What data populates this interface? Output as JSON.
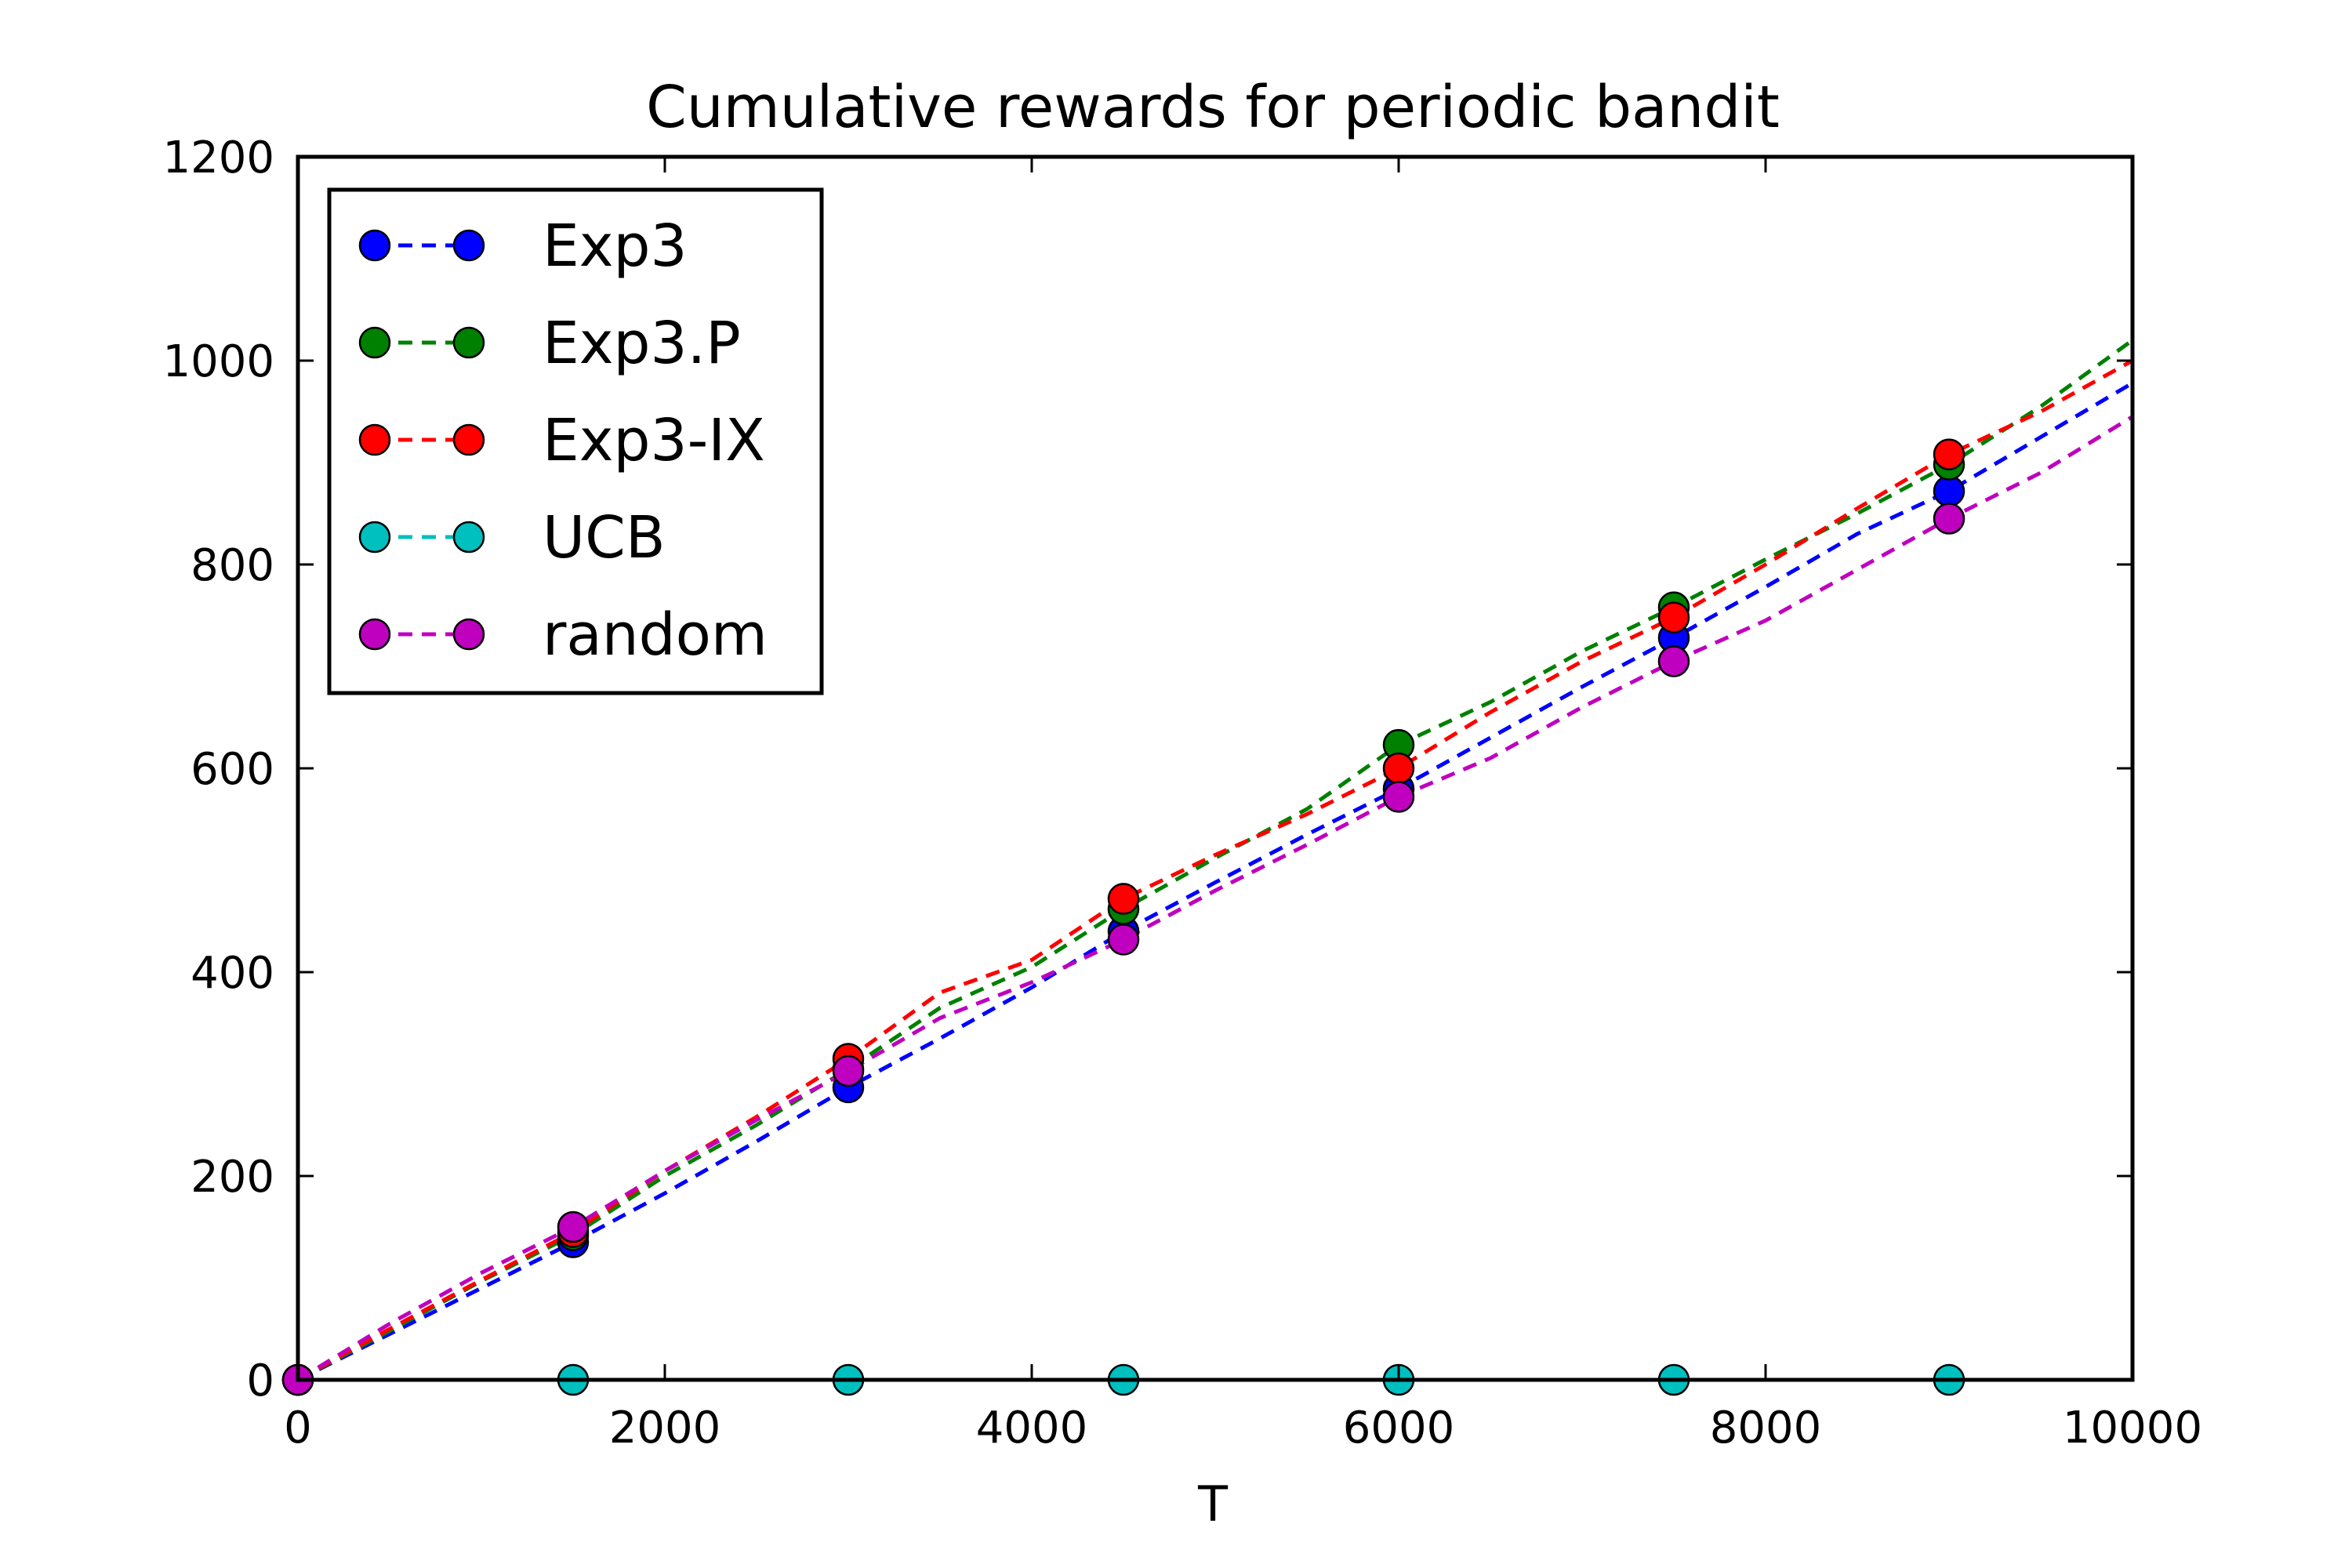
{
  "chart_data": {
    "type": "line",
    "title": "Cumulative rewards for periodic bandit",
    "xlabel": "T",
    "ylabel": "",
    "xlim": [
      0,
      10000
    ],
    "ylim": [
      0,
      1200
    ],
    "xticks": [
      0,
      2000,
      4000,
      6000,
      8000,
      10000
    ],
    "xtick_labels": [
      "0",
      "2000",
      "4000",
      "6000",
      "8000",
      "10000"
    ],
    "yticks": [
      0,
      200,
      400,
      600,
      800,
      1000,
      1200
    ],
    "ytick_labels": [
      "0",
      "200",
      "400",
      "600",
      "800",
      "1000",
      "1200"
    ],
    "grid": false,
    "legend_position": "upper-left",
    "marker_x": [
      0,
      1500,
      3000,
      4500,
      6000,
      7500,
      9000
    ],
    "series": [
      {
        "name": "Exp3",
        "color": "#0000ff",
        "x": [
          0,
          500,
          1000,
          1500,
          2000,
          2500,
          3000,
          3500,
          4000,
          4500,
          5000,
          5500,
          6000,
          6500,
          7000,
          7500,
          8000,
          8500,
          9000,
          9500,
          10000
        ],
        "y": [
          0,
          45,
          90,
          135,
          183,
          234,
          287,
          335,
          385,
          440,
          488,
          535,
          580,
          630,
          680,
          728,
          778,
          830,
          872,
          925,
          978
        ],
        "marker_y": [
          0,
          135,
          287,
          440,
          580,
          728,
          872
        ]
      },
      {
        "name": "Exp3.P",
        "color": "#008000",
        "x": [
          0,
          500,
          1000,
          1500,
          2000,
          2500,
          3000,
          3500,
          4000,
          4500,
          5000,
          5500,
          6000,
          6500,
          7000,
          7500,
          8000,
          8500,
          9000,
          9500,
          10000
        ],
        "y": [
          0,
          48,
          97,
          142,
          200,
          250,
          305,
          365,
          405,
          462,
          512,
          560,
          623,
          665,
          715,
          758,
          805,
          850,
          898,
          955,
          1020
        ],
        "marker_y": [
          0,
          142,
          305,
          462,
          623,
          758,
          898
        ]
      },
      {
        "name": "Exp3-IX",
        "color": "#ff0000",
        "x": [
          0,
          500,
          1000,
          1500,
          2000,
          2500,
          3000,
          3500,
          4000,
          4500,
          5000,
          5500,
          6000,
          6500,
          7000,
          7500,
          8000,
          8500,
          9000,
          9500,
          10000
        ],
        "y": [
          0,
          50,
          98,
          145,
          205,
          258,
          315,
          380,
          412,
          472,
          515,
          555,
          600,
          655,
          705,
          748,
          800,
          855,
          908,
          950,
          1000
        ],
        "marker_y": [
          0,
          145,
          315,
          472,
          600,
          748,
          908
        ]
      },
      {
        "name": "UCB",
        "color": "#00bfbf",
        "x": [
          0,
          500,
          1000,
          1500,
          2000,
          2500,
          3000,
          3500,
          4000,
          4500,
          5000,
          5500,
          6000,
          6500,
          7000,
          7500,
          8000,
          8500,
          9000,
          9500,
          10000
        ],
        "y": [
          0,
          0,
          0,
          0,
          0,
          0,
          0,
          0,
          0,
          0,
          0,
          0,
          0,
          0,
          0,
          0,
          0,
          0,
          0,
          0,
          0
        ],
        "marker_y": [
          0,
          0,
          0,
          0,
          0,
          0,
          0
        ]
      },
      {
        "name": "random",
        "color": "#bf00bf",
        "x": [
          0,
          500,
          1000,
          1500,
          2000,
          2500,
          3000,
          3500,
          4000,
          4500,
          5000,
          5500,
          6000,
          6500,
          7000,
          7500,
          8000,
          8500,
          9000,
          9500,
          10000
        ],
        "y": [
          0,
          55,
          105,
          150,
          205,
          255,
          303,
          355,
          390,
          432,
          480,
          525,
          572,
          610,
          660,
          705,
          745,
          795,
          845,
          890,
          945
        ],
        "marker_y": [
          0,
          150,
          303,
          432,
          572,
          705,
          845
        ]
      }
    ]
  }
}
